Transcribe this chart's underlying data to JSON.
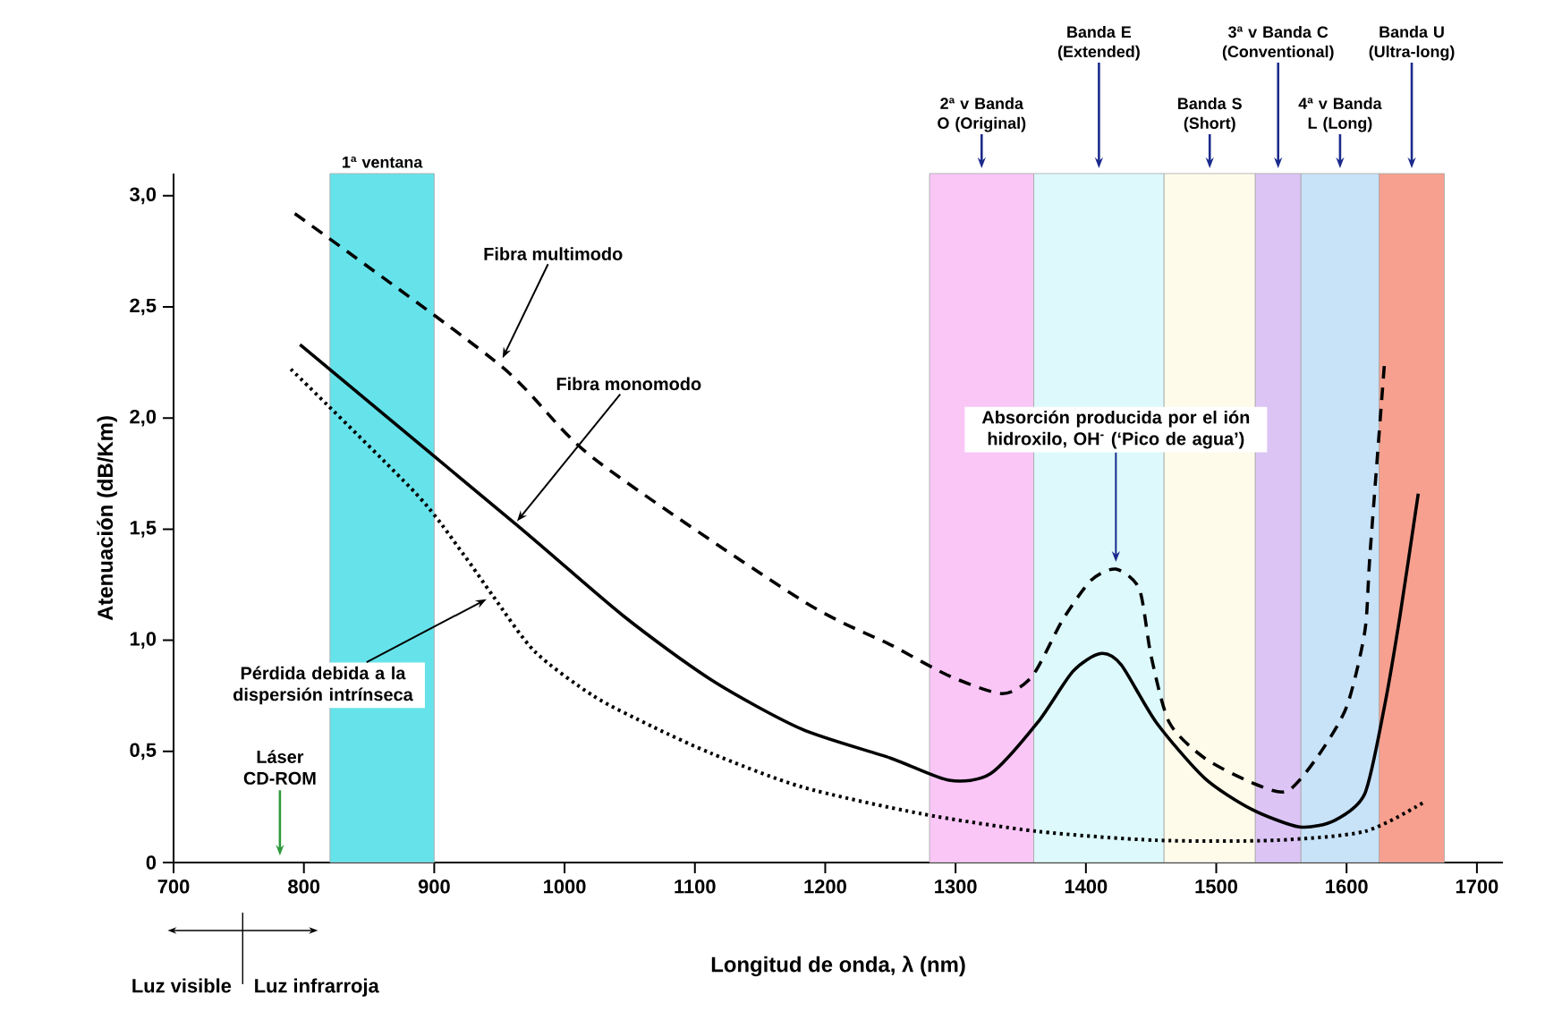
{
  "chart_data": {
    "type": "line",
    "xlabel": "Longitud de onda, λ (nm)",
    "ylabel": "Atenuación (dB/Km)",
    "xlim": [
      700,
      1720
    ],
    "ylim": [
      0,
      3.1
    ],
    "xticks": [
      700,
      800,
      900,
      1000,
      1100,
      1200,
      1300,
      1400,
      1500,
      1600,
      1700
    ],
    "yticks": [
      {
        "value": 0,
        "label": "0"
      },
      {
        "value": 0.5,
        "label": "0,5"
      },
      {
        "value": 1,
        "label": "1,0"
      },
      {
        "value": 1.5,
        "label": "1,5"
      },
      {
        "value": 2,
        "label": "2,0"
      },
      {
        "value": 2.5,
        "label": "2,5"
      },
      {
        "value": 3,
        "label": "3,0"
      }
    ],
    "series": [
      {
        "color": "#000000",
        "line_style": "dashed",
        "x": [
          793,
          950,
          1022,
          1182,
          1250,
          1295,
          1336,
          1359,
          1382,
          1404,
          1423,
          1441,
          1450,
          1464,
          1491,
          1527,
          1554,
          1577,
          1600,
          1614,
          1618,
          1629
        ],
        "values": [
          2.92,
          2.24,
          1.82,
          1.18,
          0.98,
          0.84,
          0.76,
          0.84,
          1.09,
          1.27,
          1.32,
          1.23,
          0.93,
          0.63,
          0.47,
          0.36,
          0.32,
          0.47,
          0.7,
          1.04,
          1.39,
          2.24
        ]
      },
      {
        "color": "#000000",
        "line_style": "solid",
        "x": [
          797,
          963,
          1045,
          1113,
          1182,
          1250,
          1295,
          1327,
          1363,
          1390,
          1411,
          1427,
          1454,
          1491,
          1527,
          1564,
          1591,
          1614,
          1629,
          1641,
          1655
        ],
        "values": [
          2.33,
          1.52,
          1.11,
          0.82,
          0.6,
          0.47,
          0.37,
          0.4,
          0.63,
          0.86,
          0.94,
          0.89,
          0.63,
          0.38,
          0.24,
          0.16,
          0.19,
          0.31,
          0.7,
          1.11,
          1.66
        ]
      },
      {
        "color": "#000000",
        "line_style": "dotted",
        "x": [
          790,
          886,
          922,
          945,
          977,
          1022,
          1068,
          1113,
          1182,
          1273,
          1363,
          1454,
          1545,
          1614,
          1659
        ],
        "values": [
          2.22,
          1.66,
          1.39,
          1.2,
          0.95,
          0.75,
          0.61,
          0.49,
          0.34,
          0.22,
          0.14,
          0.1,
          0.1,
          0.14,
          0.27
        ]
      }
    ],
    "bands": [
      {
        "axis": "x",
        "from": 820,
        "to": 900,
        "label": "1ª ventana",
        "color": "#66e3ea"
      },
      {
        "axis": "x",
        "from": 1280,
        "to": 1360,
        "label": "2ª v Banda O (Original)",
        "color": "#f9c6f6"
      },
      {
        "axis": "x",
        "from": 1360,
        "to": 1460,
        "label": "Banda E (Extended)",
        "color": "#ddf9fb"
      },
      {
        "axis": "x",
        "from": 1460,
        "to": 1530,
        "label": "Banda S (Short)",
        "color": "#fffbea"
      },
      {
        "axis": "x",
        "from": 1530,
        "to": 1565,
        "label": "3ª v Banda C (Conventional)",
        "color": "#dcc5f5"
      },
      {
        "axis": "x",
        "from": 1565,
        "to": 1625,
        "label": "4ª v Banda L (Long)",
        "color": "#c8e2f8"
      },
      {
        "axis": "x",
        "from": 1625,
        "to": 1675,
        "label": "Banda U (Ultra-long)",
        "color": "#f7a08f"
      }
    ],
    "annotations": [
      {
        "text": "Fibra multimodo",
        "x": 950,
        "y": 2.24
      },
      {
        "text": "Fibra monomodo",
        "x": 960,
        "y": 1.51
      },
      {
        "text": "Pérdida debida a la dispersión intrínseca",
        "x": 945,
        "y": 1.2
      },
      {
        "text": "Absorción producida por el ión hidroxilo, OH$^{-}$ (‘Pico de agua’)",
        "x": 1423,
        "y": 1.32
      },
      "Láser CD-ROM",
      "Luz visible",
      "Luz infrarroja"
    ]
  }
}
